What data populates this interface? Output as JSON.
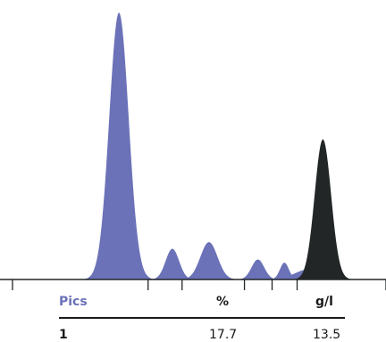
{
  "chart_data": {
    "type": "area",
    "x_range": [
      0,
      100
    ],
    "y_range": [
      0,
      100
    ],
    "series": [
      {
        "color": "#6b72b8",
        "peaks": [
          {
            "center": 28.5,
            "height": 100,
            "width": 2.6
          },
          {
            "center": 42.8,
            "height": 11.5,
            "width": 1.8
          },
          {
            "center": 52.6,
            "height": 14.0,
            "width": 2.3
          },
          {
            "center": 65.7,
            "height": 7.5,
            "width": 1.7
          },
          {
            "center": 72.8,
            "height": 6.3,
            "width": 1.2
          },
          {
            "center": 79.8,
            "height": 4.0,
            "width": 4.0
          }
        ]
      },
      {
        "color": "#222627",
        "peaks": [
          {
            "center": 83.1,
            "height": 52.5,
            "width": 2.2
          }
        ]
      }
    ],
    "fraction_ticks_x": [
      0,
      36.3,
      45.4,
      62.1,
      69.5,
      76.2,
      100
    ]
  },
  "table": {
    "headers": {
      "pics": "Pics",
      "percent": "%",
      "gl": "g/l"
    },
    "rows": [
      {
        "pic": "1",
        "percent": "17.7",
        "gl": "13.5"
      }
    ]
  },
  "colors": {
    "accent": "#6b72b8",
    "dark": "#222627",
    "text": "#1a1a1a"
  }
}
